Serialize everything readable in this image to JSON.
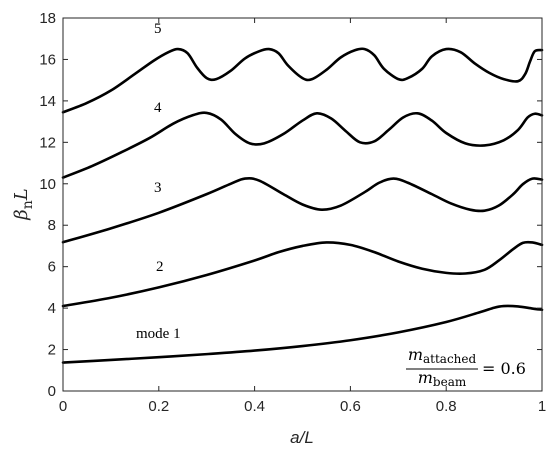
{
  "chart_data": {
    "type": "line",
    "title": "",
    "xlabel": "a/L",
    "ylabel_main": "β",
    "ylabel_sub": "n",
    "ylabel_tail": "L",
    "xlim": [
      0,
      1
    ],
    "ylim": [
      0,
      18
    ],
    "xticks": [
      0,
      0.2,
      0.4,
      0.6,
      0.8,
      1
    ],
    "xtick_labels": [
      "0",
      "0.2",
      "0.4",
      "0.6",
      "0.8",
      "1"
    ],
    "yticks": [
      0,
      2,
      4,
      6,
      8,
      10,
      12,
      14,
      16,
      18
    ],
    "ytick_labels": [
      "0",
      "2",
      "4",
      "6",
      "8",
      "10",
      "12",
      "14",
      "16",
      "18"
    ],
    "grid": false,
    "series": [
      {
        "label": "mode 1",
        "points": [
          [
            0,
            1.37
          ],
          [
            0.1,
            1.5
          ],
          [
            0.2,
            1.63
          ],
          [
            0.3,
            1.78
          ],
          [
            0.4,
            1.95
          ],
          [
            0.5,
            2.17
          ],
          [
            0.6,
            2.45
          ],
          [
            0.7,
            2.83
          ],
          [
            0.8,
            3.33
          ],
          [
            0.87,
            3.8
          ],
          [
            0.9,
            4.02
          ],
          [
            0.92,
            4.1
          ],
          [
            0.95,
            4.08
          ],
          [
            0.98,
            3.98
          ],
          [
            1,
            3.92
          ]
        ]
      },
      {
        "label": "2",
        "points": [
          [
            0,
            4.1
          ],
          [
            0.1,
            4.5
          ],
          [
            0.2,
            5.0
          ],
          [
            0.3,
            5.6
          ],
          [
            0.4,
            6.3
          ],
          [
            0.45,
            6.7
          ],
          [
            0.5,
            7.0
          ],
          [
            0.55,
            7.17
          ],
          [
            0.6,
            7.05
          ],
          [
            0.65,
            6.7
          ],
          [
            0.7,
            6.25
          ],
          [
            0.75,
            5.9
          ],
          [
            0.8,
            5.7
          ],
          [
            0.84,
            5.67
          ],
          [
            0.88,
            5.85
          ],
          [
            0.91,
            6.3
          ],
          [
            0.94,
            6.85
          ],
          [
            0.96,
            7.15
          ],
          [
            0.98,
            7.17
          ],
          [
            1,
            7.05
          ]
        ]
      },
      {
        "label": "3",
        "points": [
          [
            0,
            7.18
          ],
          [
            0.1,
            7.85
          ],
          [
            0.2,
            8.6
          ],
          [
            0.3,
            9.5
          ],
          [
            0.35,
            10.0
          ],
          [
            0.38,
            10.25
          ],
          [
            0.41,
            10.15
          ],
          [
            0.46,
            9.5
          ],
          [
            0.5,
            9.0
          ],
          [
            0.54,
            8.75
          ],
          [
            0.58,
            8.95
          ],
          [
            0.63,
            9.6
          ],
          [
            0.66,
            10.05
          ],
          [
            0.69,
            10.25
          ],
          [
            0.72,
            10.05
          ],
          [
            0.77,
            9.5
          ],
          [
            0.81,
            9.05
          ],
          [
            0.85,
            8.75
          ],
          [
            0.88,
            8.7
          ],
          [
            0.91,
            8.95
          ],
          [
            0.94,
            9.5
          ],
          [
            0.96,
            9.98
          ],
          [
            0.98,
            10.25
          ],
          [
            1,
            10.2
          ]
        ]
      },
      {
        "label": "4",
        "points": [
          [
            0,
            10.3
          ],
          [
            0.06,
            10.85
          ],
          [
            0.12,
            11.5
          ],
          [
            0.18,
            12.2
          ],
          [
            0.23,
            12.9
          ],
          [
            0.27,
            13.3
          ],
          [
            0.3,
            13.42
          ],
          [
            0.33,
            13.1
          ],
          [
            0.36,
            12.4
          ],
          [
            0.39,
            11.95
          ],
          [
            0.42,
            11.95
          ],
          [
            0.46,
            12.4
          ],
          [
            0.5,
            13.05
          ],
          [
            0.53,
            13.4
          ],
          [
            0.56,
            13.15
          ],
          [
            0.59,
            12.55
          ],
          [
            0.62,
            12.0
          ],
          [
            0.65,
            12.05
          ],
          [
            0.68,
            12.6
          ],
          [
            0.71,
            13.2
          ],
          [
            0.74,
            13.4
          ],
          [
            0.77,
            13.05
          ],
          [
            0.8,
            12.45
          ],
          [
            0.84,
            11.95
          ],
          [
            0.88,
            11.85
          ],
          [
            0.92,
            12.1
          ],
          [
            0.95,
            12.6
          ],
          [
            0.97,
            13.2
          ],
          [
            0.985,
            13.38
          ],
          [
            1,
            13.3
          ]
        ]
      },
      {
        "label": "5",
        "points": [
          [
            0,
            13.45
          ],
          [
            0.05,
            13.9
          ],
          [
            0.1,
            14.5
          ],
          [
            0.15,
            15.3
          ],
          [
            0.19,
            15.95
          ],
          [
            0.22,
            16.35
          ],
          [
            0.24,
            16.5
          ],
          [
            0.26,
            16.3
          ],
          [
            0.28,
            15.6
          ],
          [
            0.3,
            15.1
          ],
          [
            0.32,
            15.05
          ],
          [
            0.35,
            15.45
          ],
          [
            0.38,
            16.05
          ],
          [
            0.41,
            16.4
          ],
          [
            0.43,
            16.5
          ],
          [
            0.45,
            16.3
          ],
          [
            0.47,
            15.7
          ],
          [
            0.5,
            15.1
          ],
          [
            0.52,
            15.05
          ],
          [
            0.55,
            15.5
          ],
          [
            0.58,
            16.1
          ],
          [
            0.61,
            16.45
          ],
          [
            0.63,
            16.5
          ],
          [
            0.65,
            16.2
          ],
          [
            0.67,
            15.55
          ],
          [
            0.7,
            15.05
          ],
          [
            0.72,
            15.1
          ],
          [
            0.75,
            15.55
          ],
          [
            0.77,
            16.15
          ],
          [
            0.8,
            16.5
          ],
          [
            0.83,
            16.35
          ],
          [
            0.86,
            15.8
          ],
          [
            0.89,
            15.35
          ],
          [
            0.92,
            15.05
          ],
          [
            0.95,
            14.95
          ],
          [
            0.965,
            15.3
          ],
          [
            0.975,
            15.9
          ],
          [
            0.985,
            16.4
          ],
          [
            1,
            16.45
          ]
        ]
      }
    ],
    "annotations": {
      "mode1_label": "mode 1",
      "ratio_numerator": "m",
      "ratio_numerator_sub": "attached",
      "ratio_denominator": "m",
      "ratio_denominator_sub": "beam",
      "ratio_value": "= 0.6"
    }
  }
}
